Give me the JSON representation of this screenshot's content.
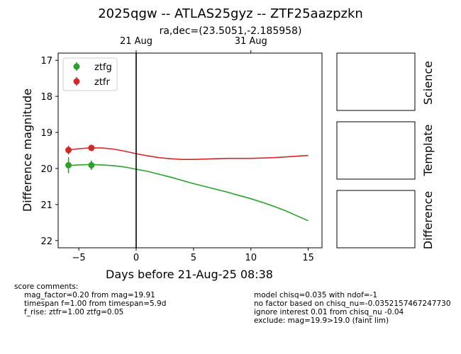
{
  "title": "2025qgw -- ATLAS25gyz -- ZTF25aazpzkn",
  "chart_data": {
    "type": "line",
    "subtitle": "ra,dec=(23.5051,-2.185958)",
    "xlabel": "Days before 21-Aug-25 08:38",
    "ylabel": "Difference magnitude",
    "xlim": [
      -6.8,
      16.2
    ],
    "ylim": [
      22.2,
      16.8
    ],
    "y_inverted": true,
    "xticks": [
      -5,
      0,
      5,
      10,
      15
    ],
    "yticks": [
      17,
      18,
      19,
      20,
      21,
      22
    ],
    "top_axis": {
      "ticks": [
        {
          "x": 0,
          "label": "21 Aug"
        },
        {
          "x": 10,
          "label": "31 Aug"
        }
      ]
    },
    "vline_x": 0,
    "legend_position": "top-left",
    "grid": false,
    "series": [
      {
        "name": "ztfg",
        "color": "#2ca02c",
        "points": [
          {
            "x": -5.9,
            "y": 19.91,
            "err": 0.22
          },
          {
            "x": -3.9,
            "y": 19.91,
            "err": 0.13
          }
        ],
        "model": {
          "x": [
            -6.0,
            -5,
            -4,
            -3,
            -2,
            -1,
            0,
            1,
            2,
            3,
            4,
            5,
            6,
            7,
            8,
            9,
            10,
            11,
            12,
            13,
            14,
            15
          ],
          "y": [
            19.92,
            19.9,
            19.89,
            19.9,
            19.92,
            19.96,
            20.02,
            20.08,
            20.16,
            20.24,
            20.33,
            20.42,
            20.5,
            20.58,
            20.66,
            20.75,
            20.84,
            20.94,
            21.05,
            21.17,
            21.31,
            21.45
          ]
        }
      },
      {
        "name": "ztfr",
        "color": "#d62728",
        "points": [
          {
            "x": -5.9,
            "y": 19.49,
            "err": 0.12
          },
          {
            "x": -3.9,
            "y": 19.43,
            "err": 0.08
          }
        ],
        "model": {
          "x": [
            -6.0,
            -5,
            -4,
            -3,
            -2,
            -1,
            0,
            1,
            2,
            3,
            4,
            5,
            6,
            7,
            8,
            9,
            10,
            11,
            12,
            13,
            14,
            15
          ],
          "y": [
            19.49,
            19.45,
            19.43,
            19.43,
            19.46,
            19.52,
            19.59,
            19.65,
            19.7,
            19.73,
            19.75,
            19.75,
            19.74,
            19.73,
            19.72,
            19.72,
            19.72,
            19.71,
            19.7,
            19.68,
            19.66,
            19.64
          ]
        }
      }
    ]
  },
  "stamps": [
    "Science",
    "Template",
    "Difference"
  ],
  "comments_left": {
    "heading": "score comments:",
    "lines": [
      "mag_factor=0.20 from mag=19.91",
      "timespan f=1.00 from timespan=5.9d",
      "f_rise: ztfr=1.00 ztfg=0.05"
    ]
  },
  "comments_right": {
    "lines": [
      "model chisq=0.035 with ndof=-1",
      "no factor based on chisq_nu=-0.0352157467247730",
      "ignore interest 0.01 from chisq_nu -0.04",
      "exclude: mag=19.9>19.0 (faint lim)"
    ]
  }
}
